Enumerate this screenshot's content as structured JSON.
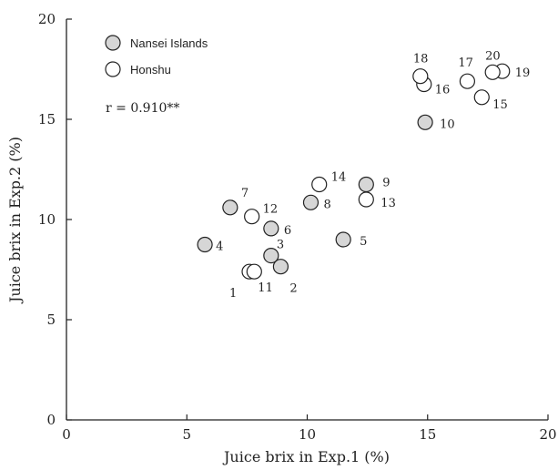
{
  "chart_data": {
    "type": "scatter",
    "title": "",
    "xlabel": "Juice brix in Exp.1 (%)",
    "ylabel": "Juice brix in Exp.2 (%)",
    "xlim": [
      0,
      20
    ],
    "ylim": [
      0,
      20
    ],
    "xticks": [
      "0",
      "5",
      "10",
      "15",
      "20"
    ],
    "yticks": [
      "0",
      "5",
      "10",
      "15",
      "20"
    ],
    "grid": false,
    "legend_position": "top-left",
    "annotation": "r = 0.910**",
    "series": [
      {
        "name": "Nansei Islands",
        "fill": "#d6d6d6",
        "points": [
          {
            "label": "2",
            "x": 8.9,
            "y": 7.65
          },
          {
            "label": "3",
            "x": 8.5,
            "y": 8.2
          },
          {
            "label": "4",
            "x": 5.75,
            "y": 8.75
          },
          {
            "label": "5",
            "x": 11.5,
            "y": 9.0
          },
          {
            "label": "6",
            "x": 8.5,
            "y": 9.55
          },
          {
            "label": "7",
            "x": 6.8,
            "y": 10.6
          },
          {
            "label": "8",
            "x": 10.15,
            "y": 10.85
          },
          {
            "label": "9",
            "x": 12.45,
            "y": 11.75
          },
          {
            "label": "10",
            "x": 14.9,
            "y": 14.85
          }
        ]
      },
      {
        "name": "Honshu",
        "fill": "#ffffff",
        "points": [
          {
            "label": "1",
            "x": 7.6,
            "y": 7.4
          },
          {
            "label": "11",
            "x": 7.8,
            "y": 7.4
          },
          {
            "label": "12",
            "x": 7.7,
            "y": 10.15
          },
          {
            "label": "13",
            "x": 12.45,
            "y": 11.0
          },
          {
            "label": "14",
            "x": 10.5,
            "y": 11.75
          },
          {
            "label": "15",
            "x": 17.25,
            "y": 16.1
          },
          {
            "label": "16",
            "x": 14.85,
            "y": 16.75
          },
          {
            "label": "17",
            "x": 16.65,
            "y": 16.9
          },
          {
            "label": "18",
            "x": 14.7,
            "y": 17.15
          },
          {
            "label": "19",
            "x": 18.1,
            "y": 17.4
          },
          {
            "label": "20",
            "x": 17.7,
            "y": 17.35
          }
        ]
      }
    ]
  }
}
